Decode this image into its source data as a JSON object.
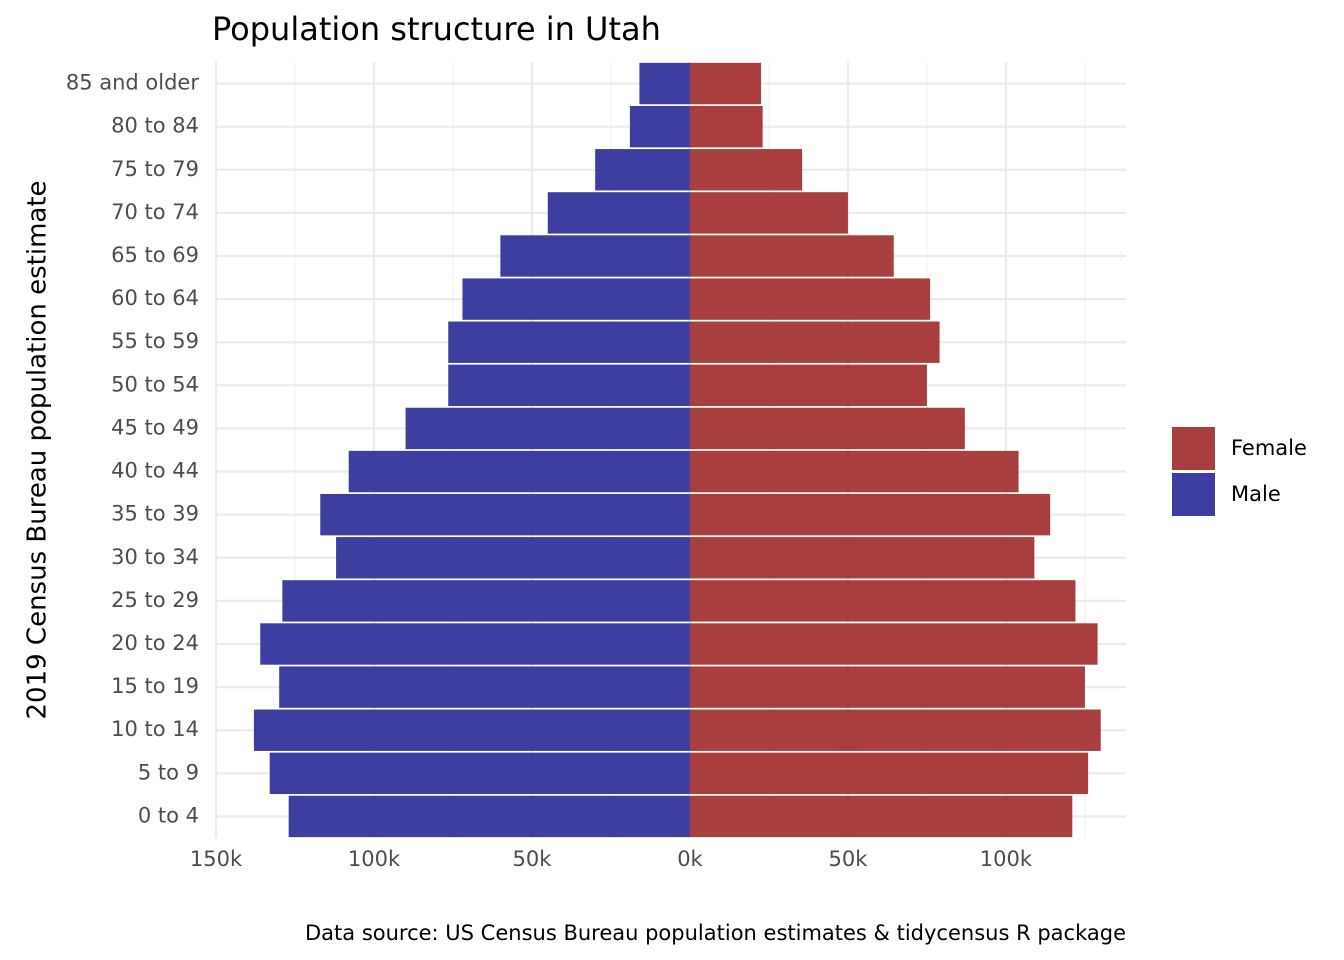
{
  "chart_data": {
    "type": "bar",
    "orientation": "horizontal",
    "title": "Population structure in Utah",
    "ylabel": "2019 Census Bureau population estimate",
    "xlabel": "",
    "caption": "Data source: US Census Bureau population estimates & tidycensus R package",
    "categories": [
      "0 to 4",
      "5 to 9",
      "10 to 14",
      "15 to 19",
      "20 to 24",
      "25 to 29",
      "30 to 34",
      "35 to 39",
      "40 to 44",
      "45 to 49",
      "50 to 54",
      "55 to 59",
      "60 to 64",
      "65 to 69",
      "70 to 74",
      "75 to 79",
      "80 to 84",
      "85 and older"
    ],
    "series": [
      {
        "name": "Male",
        "color": "#2E2E99",
        "values": [
          -127000,
          -133000,
          -138000,
          -130000,
          -136000,
          -129000,
          -112000,
          -117000,
          -108000,
          -90000,
          -76500,
          -76500,
          -72000,
          -60000,
          -45000,
          -30000,
          -19000,
          -16000
        ]
      },
      {
        "name": "Female",
        "color": "#A12E2E",
        "values": [
          121000,
          126000,
          130000,
          125000,
          129000,
          122000,
          109000,
          114000,
          104000,
          87000,
          75000,
          79000,
          76000,
          64500,
          50000,
          35500,
          23000,
          22500
        ]
      }
    ],
    "xlim": [
      -150000,
      138000
    ],
    "xticks": [
      {
        "value": -150000,
        "label": "150k"
      },
      {
        "value": -100000,
        "label": "100k"
      },
      {
        "value": -50000,
        "label": "50k"
      },
      {
        "value": 0,
        "label": "0k"
      },
      {
        "value": 50000,
        "label": "50k"
      },
      {
        "value": 100000,
        "label": "100k"
      }
    ],
    "grid": true,
    "legend": {
      "placement": "right",
      "entries": [
        "Female",
        "Male"
      ]
    }
  }
}
